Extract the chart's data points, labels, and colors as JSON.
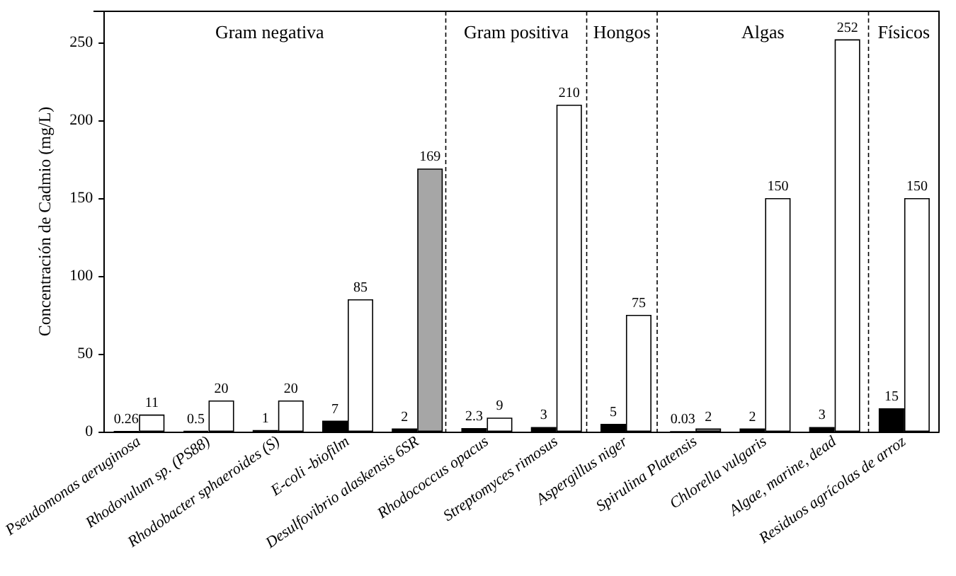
{
  "chart_data": {
    "type": "bar",
    "ylabel": "Concentración de Cadmio (mg/L)",
    "categories": [
      "Pseudomonas aeruginosa",
      "Rhodovulum sp. (PS88)",
      "Rhodobacter sphaeroides (S)",
      "E-coli -biofilm",
      "Desulfovibrio alaskensis 6SR",
      "Rhodococcus opacus",
      "Streptomyces rimosus",
      "Aspergillus niger",
      "Spirulina Platensis",
      "Chlorella vulgaris",
      "Algae, marine, dead",
      "Residuos agrícolas de arroz"
    ],
    "series": [
      {
        "colors": [
          "#000000",
          "#000000",
          "#000000",
          "#000000",
          "#000000",
          "#000000",
          "#000000",
          "#000000",
          "#000000",
          "#000000",
          "#000000",
          "#000000"
        ],
        "values": [
          0.26,
          0.5,
          1,
          7,
          2,
          2.3,
          3,
          5,
          0.03,
          2,
          3,
          15
        ]
      },
      {
        "colors": [
          "#ffffff",
          "#ffffff",
          "#ffffff",
          "#ffffff",
          "#a6a6a6",
          "#ffffff",
          "#ffffff",
          "#ffffff",
          "#a6a6a6",
          "#ffffff",
          "#ffffff",
          "#ffffff"
        ],
        "values": [
          11,
          20,
          20,
          85,
          169,
          9,
          210,
          75,
          2,
          150,
          252,
          150
        ]
      }
    ],
    "ylim": [
      0,
      270
    ],
    "yticks": [
      0,
      50,
      100,
      150,
      200,
      250
    ],
    "data_labels": true,
    "annotations": [
      "Gram negativa",
      "Gram positiva",
      "Hongos",
      "Algas",
      "Físicos"
    ]
  }
}
